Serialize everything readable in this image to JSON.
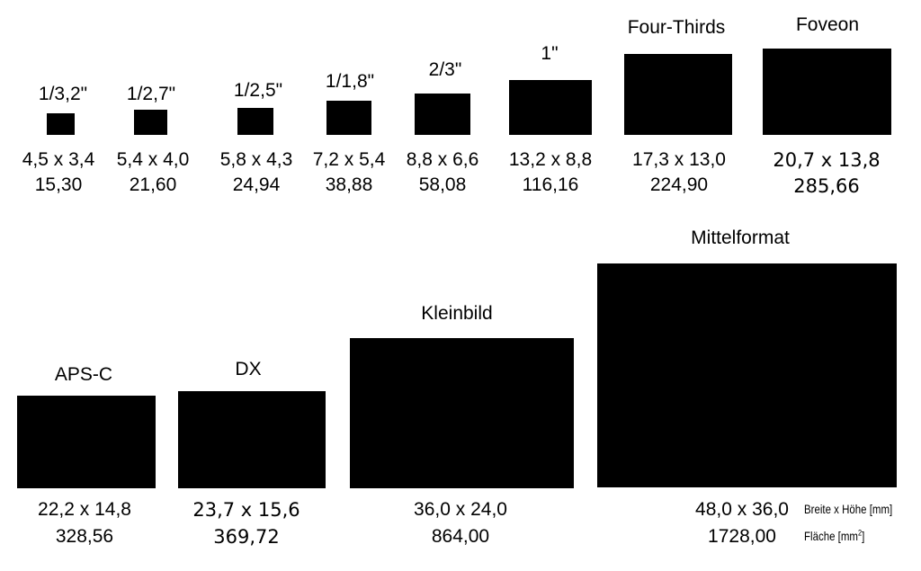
{
  "sensors": [
    {
      "name": "1/3,2\"",
      "dims": "4,5 x 3,4",
      "area": "15,30"
    },
    {
      "name": "1/2,7\"",
      "dims": "5,4 x 4,0",
      "area": "21,60"
    },
    {
      "name": "1/2,5\"",
      "dims": "5,8 x 4,3",
      "area": "24,94"
    },
    {
      "name": "1/1,8\"",
      "dims": "7,2 x 5,4",
      "area": "38,88"
    },
    {
      "name": "2/3\"",
      "dims": "8,8 x 6,6",
      "area": "58,08"
    },
    {
      "name": "1\"",
      "dims": "13,2 x 8,8",
      "area": "116,16"
    },
    {
      "name": "Four-Thirds",
      "dims": "17,3 x 13,0",
      "area": "224,90"
    },
    {
      "name": "Foveon",
      "dims": "20,7 x 13,8",
      "area": "285,66"
    },
    {
      "name": "APS-C",
      "dims": "22,2 x 14,8",
      "area": "328,56"
    },
    {
      "name": "DX",
      "dims": "23,7 x 15,6",
      "area": "369,72"
    },
    {
      "name": "Kleinbild",
      "dims": "36,0 x 24,0",
      "area": "864,00"
    },
    {
      "name": "Mittelformat",
      "dims": "48,0 x 36,0",
      "area": "1728,00"
    }
  ],
  "legend": {
    "dims_label": "Breite x Höhe [mm]",
    "area_label_prefix": "Fläche [mm",
    "area_label_sup": "2",
    "area_label_suffix": "]"
  },
  "colors": {
    "sensor_fill": "#000000",
    "background": "#ffffff"
  }
}
